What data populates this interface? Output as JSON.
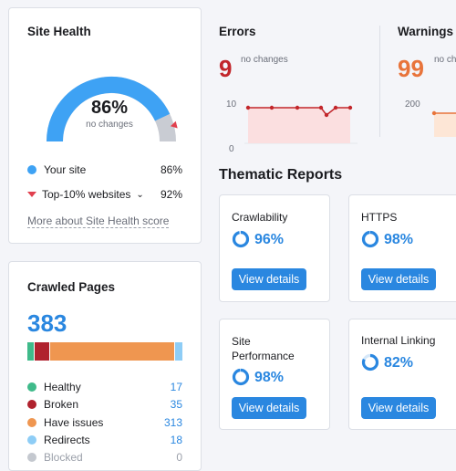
{
  "site_health": {
    "title": "Site Health",
    "score": "86%",
    "score_sub": "no changes",
    "your_site_label": "Your site",
    "your_site_value": "86%",
    "top_label": "Top-10% websites",
    "top_value": "92%",
    "link": "More about Site Health score",
    "score_fraction": 0.86,
    "top_fraction": 0.92,
    "colors": {
      "your_site": "#3ea2f4",
      "top": "#e1404e",
      "track": "#c9ccd3"
    }
  },
  "errors": {
    "title": "Errors",
    "count": "9",
    "sub": "no changes",
    "axis_top": "10",
    "axis_bottom": "0",
    "color": "#c2262b"
  },
  "warnings": {
    "title": "Warnings",
    "count": "99",
    "sub": "no changes",
    "axis_top": "200",
    "axis_bottom": "0",
    "color": "#e8743b"
  },
  "crawled": {
    "title": "Crawled Pages",
    "total": "383",
    "items": [
      {
        "label": "Healthy",
        "value": "17",
        "color": "#3fba8a"
      },
      {
        "label": "Broken",
        "value": "35",
        "color": "#b0222e"
      },
      {
        "label": "Have issues",
        "value": "313",
        "color": "#ef9650"
      },
      {
        "label": "Redirects",
        "value": "18",
        "color": "#8ecdf6"
      },
      {
        "label": "Blocked",
        "value": "0",
        "color": "#c4c8cf"
      }
    ]
  },
  "thematic": {
    "title": "Thematic Reports",
    "button_label": "View details",
    "reports": [
      {
        "label": "Crawlability",
        "value": "96%",
        "fraction": 0.96
      },
      {
        "label": "HTTPS",
        "value": "98%",
        "fraction": 0.98
      },
      {
        "label": "Site Performance",
        "value": "98%",
        "fraction": 0.98
      },
      {
        "label": "Internal Linking",
        "value": "82%",
        "fraction": 0.82
      }
    ]
  }
}
